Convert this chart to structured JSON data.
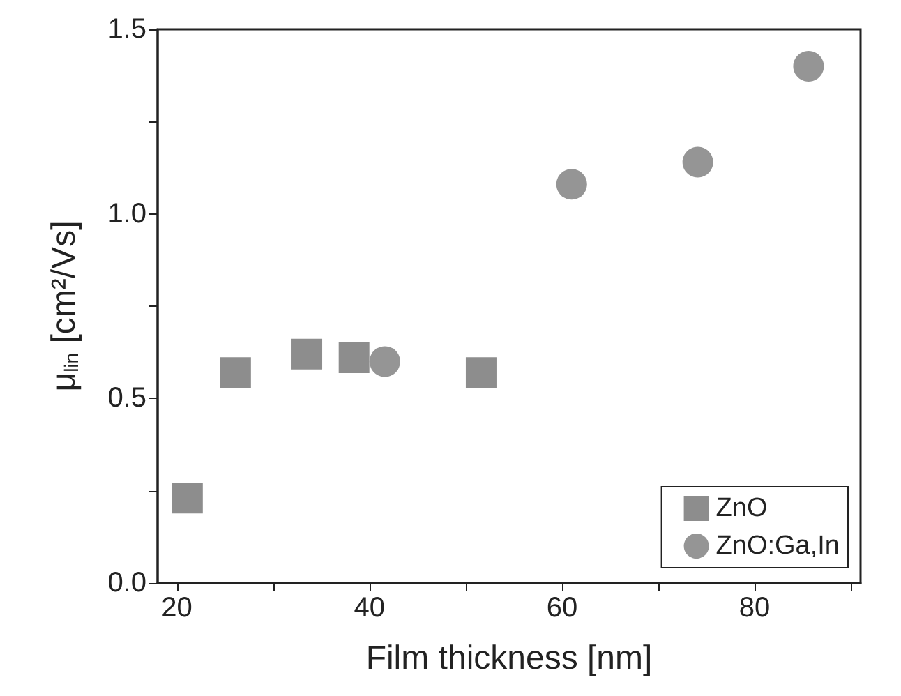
{
  "chart_data": {
    "type": "scatter",
    "xlabel": "Film thickness [nm]",
    "ylabel": "μ$_{lin}$ [cm²/Vs]",
    "xlim": [
      18,
      91
    ],
    "xticks": [
      20,
      {
        "value": 30,
        "label": null
      },
      40,
      {
        "value": 50,
        "label": null
      },
      60,
      {
        "value": 70,
        "label": null
      },
      80,
      {
        "value": 90,
        "label": null
      }
    ],
    "ylim": [
      0,
      1.5
    ],
    "yticks": [
      "0.0",
      {
        "value": 0.25,
        "label": null
      },
      {
        "value": 0.5,
        "label": "0.5"
      },
      {
        "value": 0.75,
        "label": null
      },
      {
        "value": 1.0,
        "label": "1.0"
      },
      {
        "value": 1.25,
        "label": null
      },
      {
        "value": 1.5,
        "label": "1.5"
      }
    ],
    "grid": false,
    "legend": "bottom right",
    "series": [
      {
        "name": "ZnO",
        "color": "#707070",
        "marker": "square",
        "x": [
          21.1,
          26.1,
          33.5,
          38.4,
          51.6
        ],
        "values": [
          0.23,
          0.57,
          0.62,
          0.61,
          0.57
        ]
      },
      {
        "name": "ZnO:Ga,In",
        "color": "#7a7a7a",
        "marker": "circle",
        "x": [
          41.6,
          61.0,
          74.1,
          85.6
        ],
        "values": [
          0.6,
          1.08,
          1.14,
          1.4
        ]
      }
    ]
  }
}
